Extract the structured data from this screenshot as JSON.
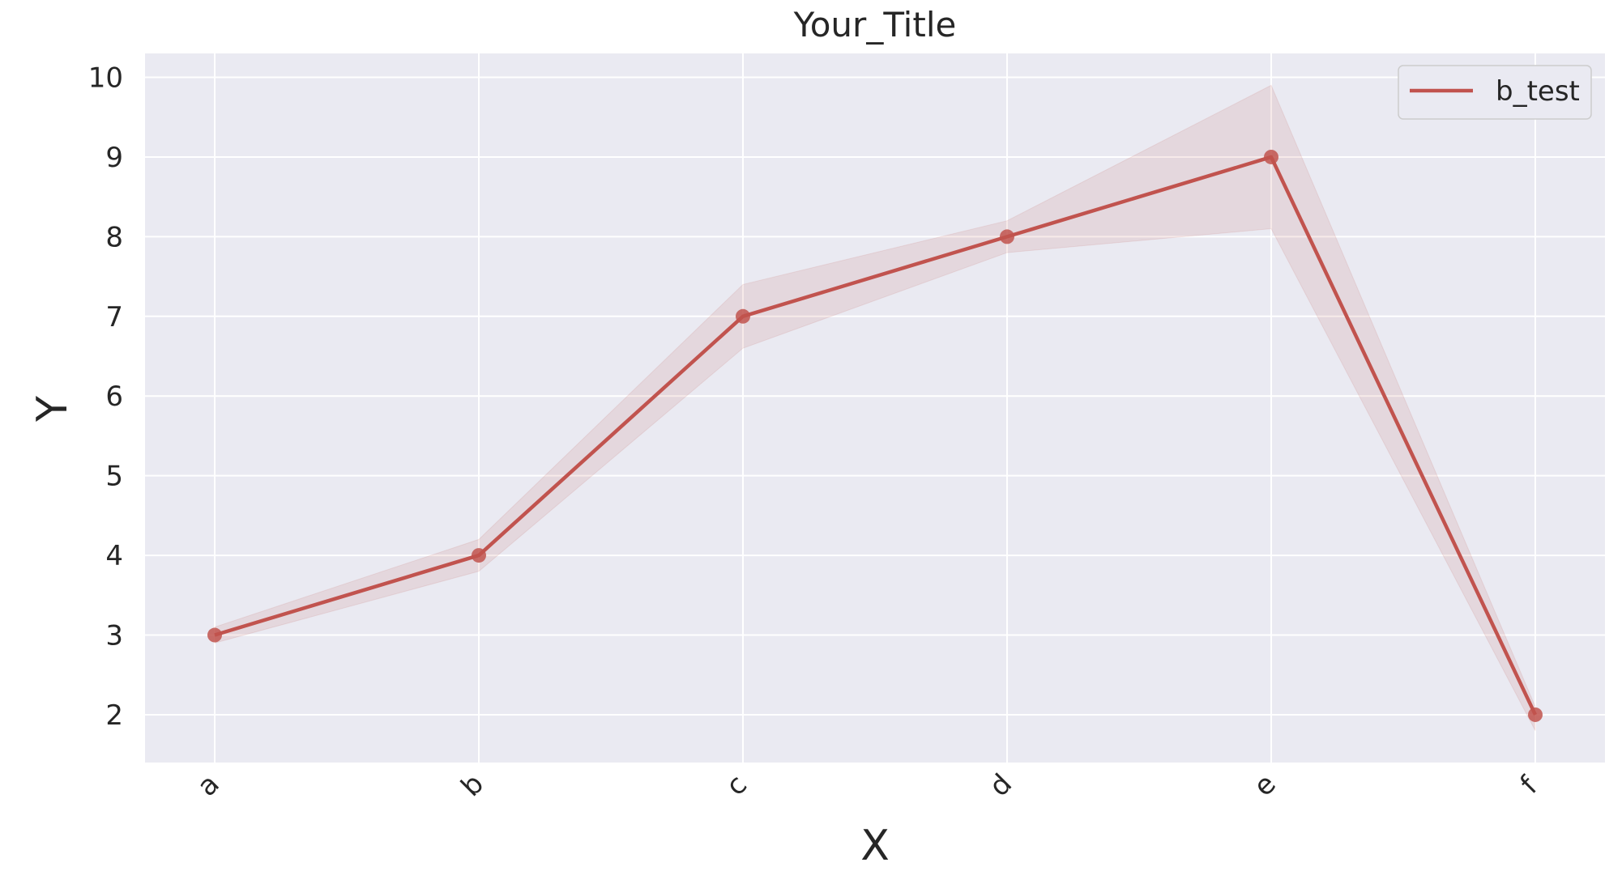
{
  "chart_data": {
    "type": "line",
    "title": "Your_Title",
    "xlabel": "X",
    "ylabel": "Y",
    "categories": [
      "a",
      "b",
      "c",
      "d",
      "e",
      "f"
    ],
    "ylim": [
      1.4,
      10.3
    ],
    "yticks": [
      2,
      3,
      4,
      5,
      6,
      7,
      8,
      9,
      10
    ],
    "grid": true,
    "legend_position": "top-right",
    "series": [
      {
        "name": "b_test",
        "color": "#c1534e",
        "values": [
          3,
          4,
          7,
          8,
          9,
          2
        ],
        "band_upper": [
          3.1,
          4.2,
          7.4,
          8.2,
          9.9,
          2.1
        ],
        "band_lower": [
          2.9,
          3.8,
          6.6,
          7.8,
          8.1,
          1.8
        ]
      }
    ],
    "colors": {
      "plot_background": "#eaeaf2",
      "grid": "#ffffff",
      "band": "#c1534e"
    }
  }
}
